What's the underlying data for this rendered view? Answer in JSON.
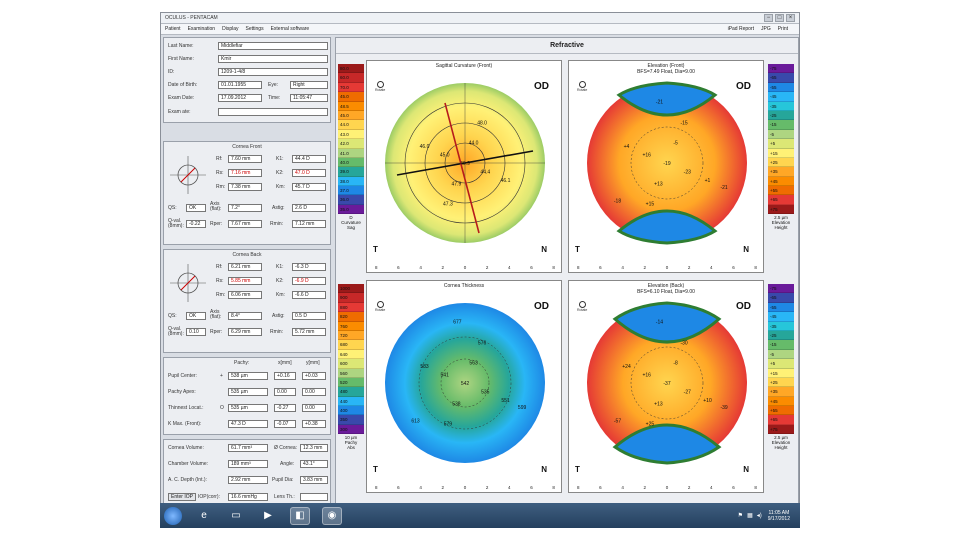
{
  "window": {
    "title": "OCULUS - PENTACAM",
    "controls": [
      "−",
      "□",
      "×"
    ]
  },
  "menu": {
    "items": [
      "Patient",
      "Examination",
      "Display",
      "Settings",
      "External software"
    ],
    "right_items": [
      "iPad Report",
      "JPG",
      "Print"
    ]
  },
  "patient": {
    "last_name_label": "Last Name:",
    "last_name": "Middlefiar",
    "first_name_label": "First Name:",
    "first_name": "Kmir",
    "id_label": "ID:",
    "id": "1209-1-4/8",
    "dob_label": "Date of Birth:",
    "dob": "01.01.1955",
    "eye_label": "Eye:",
    "eye": "Right",
    "exam_date_label": "Exam Date:",
    "exam_date": "17.09.2012",
    "time_label": "Time:",
    "time": "11:05:47",
    "comment_label": "Exam ate:",
    "comment": ""
  },
  "cornea_front": {
    "title": "Cornea Front",
    "rf_label": "Rf:",
    "rf": "7.60 mm",
    "k1_label": "K1:",
    "k1": "44.4 D",
    "rs_label": "Rs:",
    "rs": "7.16 mm",
    "k2_label": "K2:",
    "k2": "47.0 D",
    "rm_label": "Rm:",
    "rm": "7.38 mm",
    "km_label": "Km:",
    "km": "45.7 D",
    "qs_label": "QS:",
    "qs": "OK",
    "axis_label": "Axis (flat):",
    "axis": "7.2°",
    "astig_label": "Astig:",
    "astig": "2.6 D",
    "q_label": "Q-val. (8mm):",
    "q": "-0.22",
    "rper_label": "Rper:",
    "rper": "7.67 mm",
    "rmin_label": "Rmin:",
    "rmin": "7.12 mm"
  },
  "cornea_back": {
    "title": "Cornea Back",
    "rf_label": "Rf:",
    "rf": "6.21 mm",
    "k1_label": "K1:",
    "k1": "-6.3 D",
    "rs_label": "Rs:",
    "rs": "5.85 mm",
    "k2_label": "K2:",
    "k2": "-6.9 D",
    "rm_label": "Rm:",
    "rm": "6.06 mm",
    "km_label": "Km:",
    "km": "-6.6 D",
    "qs_label": "QS:",
    "qs": "OK",
    "axis_label": "Axis (flat):",
    "axis": "8.4°",
    "astig_label": "Astig:",
    "astig": "0.5 D",
    "q_label": "Q-val. (8mm):",
    "q": "0.10",
    "rper_label": "Rper:",
    "rper": "6.29 mm",
    "rmin_label": "Rmin:",
    "rmin": "5.72 mm"
  },
  "pachy": {
    "col_pachy": "Pachy:",
    "col_xmm": "x[mm]",
    "col_ymm": "y[mm]",
    "rows": [
      {
        "label": "Pupil Center:",
        "sym": "+",
        "pachy": "538 µm",
        "x": "+0.16",
        "y": "+0.03"
      },
      {
        "label": "Pachy Apex:",
        "sym": "",
        "pachy": "535 µm",
        "x": "0.00",
        "y": "0.00"
      },
      {
        "label": "Thinnest Locat.:",
        "sym": "O",
        "pachy": "535 µm",
        "x": "-0.27",
        "y": "0.00"
      },
      {
        "label": "K Max. (Front):",
        "sym": "",
        "pachy": "47.3 D",
        "x": "-0.07",
        "y": "+0.38"
      }
    ]
  },
  "chamber": {
    "cornea_volume_label": "Cornea Volume:",
    "cornea_volume": "61.7 mm³",
    "diam_label": "Ø Cornea:",
    "diam": "12.3 mm",
    "chamber_volume_label": "Chamber Volume:",
    "chamber_volume": "189 mm³",
    "angle_label": "Angle:",
    "angle": "43.1°",
    "acd_label": "A. C. Depth (Int.):",
    "acd": "2.92 mm",
    "pupil_label": "Pupil Dia:",
    "pupil": "3.83 mm",
    "iop_btn": "Enter IOP",
    "iop_label": "IOP(corr):",
    "iop": "16.6 mmHg",
    "lens_label": "Lens Th.:",
    "lens": ""
  },
  "main": {
    "title": "Refractive",
    "eye_tag": "OD",
    "temporal": "T",
    "nasal": "N",
    "xticks": [
      "8",
      "6",
      "4",
      "2",
      "0",
      "2",
      "4",
      "6",
      "8"
    ],
    "yticks": [
      "6",
      "4",
      "2",
      "0",
      "2",
      "4",
      "6"
    ],
    "maps": [
      {
        "title": "Sagittal Curvature (Front)",
        "subtitle": "",
        "scale": [
          "80.0",
          "60.0",
          "70.0",
          "45.0",
          "48.5",
          "45.0",
          "44.0",
          "43.0",
          "42.0",
          "41.0",
          "40.0",
          "39.0",
          "38.0",
          "37.0",
          "36.0",
          "35.0"
        ],
        "scale_colors": [
          "#9b1a1a",
          "#c62828",
          "#e53935",
          "#ef6c00",
          "#fb8c00",
          "#ffa726",
          "#ffd54f",
          "#fff176",
          "#dce775",
          "#aed581",
          "#66bb6a",
          "#26a69a",
          "#29b6f6",
          "#1e88e5",
          "#3949ab",
          "#6a1b9a"
        ],
        "scale_foot": "D\nCurvature\nSag",
        "values": [
          "46.9",
          "44.4",
          "47.9",
          "45.0",
          "44.0",
          "46.1",
          "47.3",
          "46.0",
          "48.0"
        ],
        "camera": "Rotate"
      },
      {
        "title": "Elevation (Front)",
        "subtitle": "BFS=7.49 Float, Dia=9.00",
        "scale": [
          "-75",
          "-65",
          "-55",
          "-45",
          "-35",
          "-25",
          "-15",
          "-5",
          "+5",
          "+15",
          "+25",
          "+35",
          "+45",
          "+55",
          "+65",
          "+75"
        ],
        "scale_colors": [
          "#6a1b9a",
          "#3949ab",
          "#1e88e5",
          "#29b6f6",
          "#26c6da",
          "#26a69a",
          "#66bb6a",
          "#aed581",
          "#dce775",
          "#fff176",
          "#ffd54f",
          "#ffa726",
          "#fb8c00",
          "#ef6c00",
          "#e53935",
          "#9b1a1a"
        ],
        "scale_foot": "2.5 µm\nElevation\nHeight",
        "values": [
          "-19",
          "-23",
          "+13",
          "+16",
          "-5",
          "+1",
          "+15",
          "+4",
          "-15",
          "-21",
          "-18",
          "-21"
        ],
        "camera": "Rotate"
      },
      {
        "title": "Cornea Thickness",
        "subtitle": "",
        "scale": [
          "1000",
          "900",
          "880",
          "820",
          "760",
          "720",
          "680",
          "640",
          "600",
          "560",
          "520",
          "480",
          "440",
          "400",
          "350",
          "300"
        ],
        "scale_colors": [
          "#9b1a1a",
          "#c62828",
          "#e53935",
          "#ef6c00",
          "#fb8c00",
          "#ffa726",
          "#ffd54f",
          "#fff176",
          "#dce775",
          "#aed581",
          "#66bb6a",
          "#26a69a",
          "#29b6f6",
          "#1e88e5",
          "#3949ab",
          "#6a1b9a"
        ],
        "scale_foot": "10 µm\nPachy\nAbs",
        "values": [
          "542",
          "535",
          "538",
          "541",
          "563",
          "551",
          "579",
          "583",
          "576",
          "599",
          "613",
          "677"
        ],
        "camera": "Rotate"
      },
      {
        "title": "Elevation (Back)",
        "subtitle": "BFS=6.10 Float, Dia=9.00",
        "scale": [
          "-75",
          "-65",
          "-55",
          "-45",
          "-35",
          "-25",
          "-15",
          "-5",
          "+5",
          "+15",
          "+25",
          "+35",
          "+45",
          "+55",
          "+65",
          "+75"
        ],
        "scale_colors": [
          "#6a1b9a",
          "#3949ab",
          "#1e88e5",
          "#29b6f6",
          "#26c6da",
          "#26a69a",
          "#66bb6a",
          "#aed581",
          "#dce775",
          "#fff176",
          "#ffd54f",
          "#ffa726",
          "#fb8c00",
          "#ef6c00",
          "#e53935",
          "#9b1a1a"
        ],
        "scale_foot": "2.5 µm\nElevation\nHeight",
        "values": [
          "-37",
          "-27",
          "+13",
          "+16",
          "-8",
          "+10",
          "+25",
          "+24",
          "-30",
          "-39",
          "-57",
          "-14"
        ],
        "camera": "Rotate"
      }
    ]
  },
  "taskbar": {
    "apps": [
      "start-icon",
      "ie-icon",
      "folder-icon",
      "media-icon",
      "pentacam-icon",
      "app-icon"
    ],
    "time": "11:05 AM",
    "date": "9/17/2012"
  }
}
